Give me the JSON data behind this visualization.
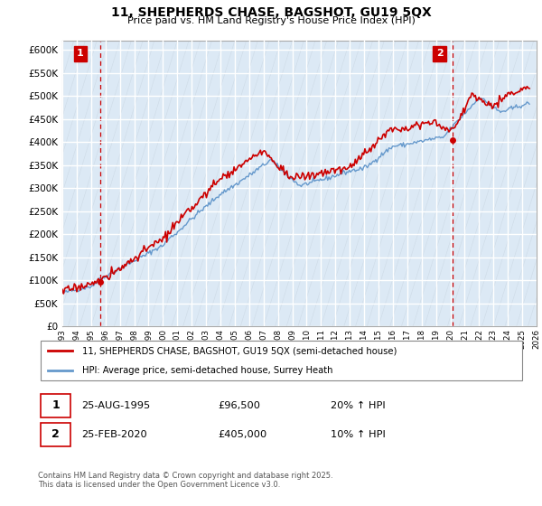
{
  "title": "11, SHEPHERDS CHASE, BAGSHOT, GU19 5QX",
  "subtitle": "Price paid vs. HM Land Registry's House Price Index (HPI)",
  "ylim": [
    0,
    620000
  ],
  "yticks": [
    0,
    50000,
    100000,
    150000,
    200000,
    250000,
    300000,
    350000,
    400000,
    450000,
    500000,
    550000,
    600000
  ],
  "chart_bg": "#dce9f5",
  "grid_color": "#ffffff",
  "hatch_color": "#c0cdd8",
  "hpi_line_color": "#6699cc",
  "price_line_color": "#cc0000",
  "vline_color": "#cc0000",
  "point1_year": 1995.65,
  "point1_price": 96500,
  "point1_label": "1",
  "point2_year": 2020.15,
  "point2_price": 405000,
  "point2_label": "2",
  "legend_price_label": "11, SHEPHERDS CHASE, BAGSHOT, GU19 5QX (semi-detached house)",
  "legend_hpi_label": "HPI: Average price, semi-detached house, Surrey Heath",
  "annotation1_date": "25-AUG-1995",
  "annotation1_price": "£96,500",
  "annotation1_hpi": "20% ↑ HPI",
  "annotation2_date": "25-FEB-2020",
  "annotation2_price": "£405,000",
  "annotation2_hpi": "10% ↑ HPI",
  "footer": "Contains HM Land Registry data © Crown copyright and database right 2025.\nThis data is licensed under the Open Government Licence v3.0.",
  "xmin": 1993,
  "xmax": 2026
}
